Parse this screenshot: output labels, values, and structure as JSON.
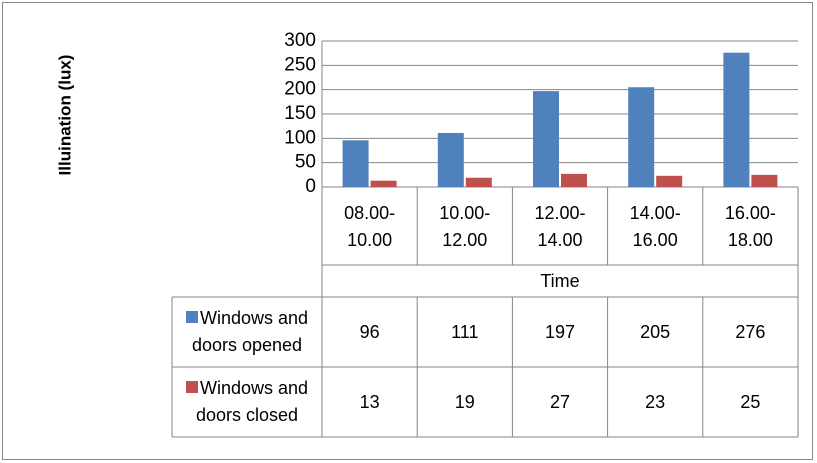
{
  "chart_data": {
    "type": "bar",
    "y_axis_title": "Illuination (lux)",
    "x_axis_title": "Time",
    "categories": [
      "08.00-10.00",
      "10.00-12.00",
      "12.00-14.00",
      "14.00-16.00",
      "16.00-18.00"
    ],
    "series": [
      {
        "name": "Windows and doors opened",
        "color": "#4f81bd",
        "values": [
          96,
          111,
          197,
          205,
          276
        ]
      },
      {
        "name": "Windows and doors closed",
        "color": "#c0504d",
        "values": [
          13,
          19,
          27,
          23,
          25
        ]
      }
    ],
    "ylim": [
      0,
      300
    ],
    "yticks": [
      0,
      50,
      100,
      150,
      200,
      250,
      300
    ],
    "grid": true
  }
}
